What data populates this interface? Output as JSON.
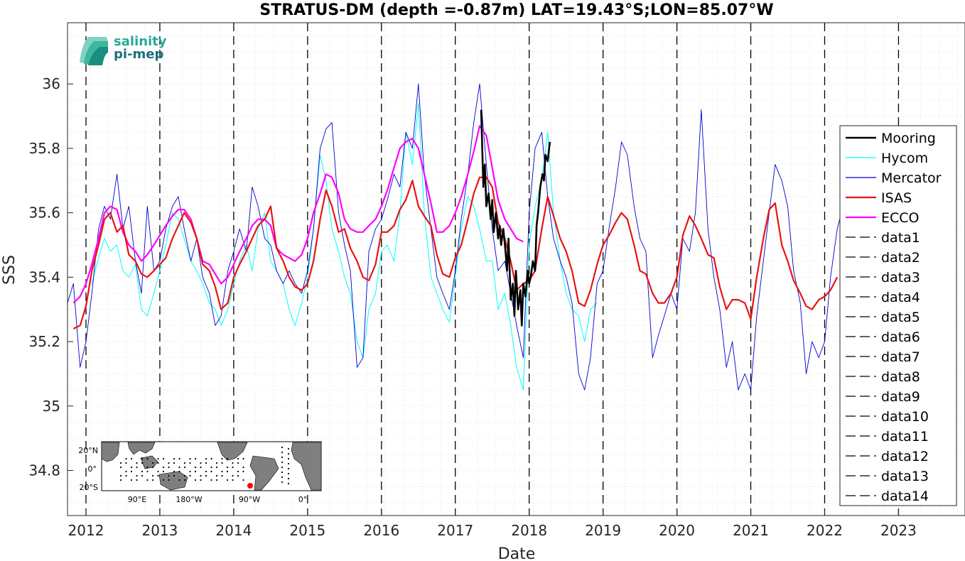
{
  "logo": {
    "line1": "salinity",
    "line2": "pi-mep"
  },
  "inset_map": {
    "lat_ticks": [
      "20°N",
      "0°",
      "20°S"
    ],
    "lon_ticks": [
      "90°E",
      "180°W",
      "90°W",
      "0°"
    ],
    "land_color": "#7f7f7f",
    "station_color": "#ff0000"
  },
  "colors": {
    "Mooring": "#000000",
    "Hycom": "#00ffff",
    "Mercator": "#0000cd",
    "ISAS": "#e61414",
    "ECCO": "#ff00ff",
    "dashed": "#000000"
  },
  "chart_data": {
    "type": "line",
    "title": "STRATUS-DM (depth =-0.87m) LAT=19.43°S;LON=85.07°W",
    "xlabel": "Date",
    "ylabel": "SSS",
    "xlim": [
      2011.75,
      2023.9
    ],
    "ylim": [
      34.66,
      36.19
    ],
    "x_ticks": [
      2012,
      2013,
      2014,
      2015,
      2016,
      2017,
      2018,
      2019,
      2020,
      2021,
      2022,
      2023
    ],
    "y_ticks": [
      34.8,
      35,
      35.2,
      35.4,
      35.6,
      35.8,
      36
    ],
    "y_tick_labels": [
      "34.8",
      "35",
      "35.2",
      "35.4",
      "35.6",
      "35.8",
      "36"
    ],
    "grid": true,
    "legend_position": "right",
    "legend": [
      "Mooring",
      "Hycom",
      "Mercator",
      "ISAS",
      "ECCO",
      "data1",
      "data2",
      "data3",
      "data4",
      "data5",
      "data6",
      "data7",
      "data8",
      "data9",
      "data10",
      "data11",
      "data12",
      "data13",
      "data14"
    ],
    "vertical_dashed_lines_x": [
      2012,
      2013,
      2014,
      2015,
      2016,
      2017,
      2018,
      2019,
      2020,
      2021,
      2022,
      2023,
      2011.75,
      2023.9
    ],
    "series": [
      {
        "name": "ISAS",
        "x": [
          2011.83,
          2011.92,
          2012.0,
          2012.08,
          2012.17,
          2012.25,
          2012.33,
          2012.42,
          2012.5,
          2012.58,
          2012.67,
          2012.75,
          2012.83,
          2012.92,
          2013.0,
          2013.08,
          2013.17,
          2013.25,
          2013.33,
          2013.42,
          2013.5,
          2013.58,
          2013.67,
          2013.75,
          2013.83,
          2013.92,
          2014.0,
          2014.08,
          2014.17,
          2014.25,
          2014.33,
          2014.42,
          2014.5,
          2014.58,
          2014.67,
          2014.75,
          2014.83,
          2014.92,
          2015.0,
          2015.08,
          2015.17,
          2015.25,
          2015.33,
          2015.42,
          2015.5,
          2015.58,
          2015.67,
          2015.75,
          2015.83,
          2015.92,
          2016.0,
          2016.08,
          2016.17,
          2016.25,
          2016.33,
          2016.42,
          2016.5,
          2016.58,
          2016.67,
          2016.75,
          2016.83,
          2016.92,
          2017.0,
          2017.08,
          2017.17,
          2017.25,
          2017.33,
          2017.42,
          2017.5,
          2017.58,
          2017.67,
          2017.75,
          2017.83,
          2017.92,
          2018.0,
          2018.08,
          2018.17,
          2018.25,
          2018.33,
          2018.42,
          2018.5,
          2018.58,
          2018.67,
          2018.75,
          2018.83,
          2018.92,
          2019.0,
          2019.08,
          2019.17,
          2019.25,
          2019.33,
          2019.42,
          2019.5,
          2019.58,
          2019.67,
          2019.75,
          2019.83,
          2019.92,
          2020.0,
          2020.08,
          2020.17,
          2020.25,
          2020.33,
          2020.42,
          2020.5,
          2020.58,
          2020.67,
          2020.75,
          2020.83,
          2020.92,
          2021.0,
          2021.08,
          2021.17,
          2021.25,
          2021.33,
          2021.42,
          2021.5,
          2021.58,
          2021.67,
          2021.75,
          2021.83,
          2021.92,
          2022.0,
          2022.08,
          2022.17
        ],
        "values": [
          35.24,
          35.25,
          35.31,
          35.42,
          35.5,
          35.58,
          35.6,
          35.54,
          35.56,
          35.47,
          35.45,
          35.41,
          35.4,
          35.42,
          35.44,
          35.46,
          35.52,
          35.56,
          35.6,
          35.57,
          35.52,
          35.44,
          35.42,
          35.37,
          35.3,
          35.32,
          35.4,
          35.44,
          35.48,
          35.52,
          35.56,
          35.58,
          35.62,
          35.49,
          35.45,
          35.4,
          35.37,
          35.36,
          35.38,
          35.45,
          35.58,
          35.67,
          35.62,
          35.54,
          35.55,
          35.49,
          35.45,
          35.4,
          35.39,
          35.44,
          35.54,
          35.54,
          35.56,
          35.61,
          35.64,
          35.7,
          35.62,
          35.59,
          35.56,
          35.47,
          35.41,
          35.4,
          35.46,
          35.5,
          35.58,
          35.66,
          35.71,
          35.71,
          35.68,
          35.57,
          35.52,
          35.45,
          35.36,
          35.38,
          35.39,
          35.42,
          35.55,
          35.65,
          35.59,
          35.52,
          35.48,
          35.42,
          35.32,
          35.31,
          35.36,
          35.44,
          35.5,
          35.53,
          35.57,
          35.6,
          35.58,
          35.5,
          35.42,
          35.41,
          35.35,
          35.32,
          35.32,
          35.35,
          35.4,
          35.53,
          35.59,
          35.56,
          35.52,
          35.47,
          35.46,
          35.37,
          35.3,
          35.33,
          35.33,
          35.32,
          35.27,
          35.4,
          35.52,
          35.61,
          35.63,
          35.5,
          35.45,
          35.39,
          35.35,
          35.31,
          35.3,
          35.33,
          35.34,
          35.36,
          35.4
        ]
      },
      {
        "name": "ECCO",
        "x": [
          2011.83,
          2011.92,
          2012.0,
          2012.08,
          2012.17,
          2012.25,
          2012.33,
          2012.42,
          2012.5,
          2012.58,
          2012.67,
          2012.75,
          2012.83,
          2012.92,
          2013.0,
          2013.08,
          2013.17,
          2013.25,
          2013.33,
          2013.42,
          2013.5,
          2013.58,
          2013.67,
          2013.75,
          2013.83,
          2013.92,
          2014.0,
          2014.08,
          2014.17,
          2014.25,
          2014.33,
          2014.42,
          2014.5,
          2014.58,
          2014.67,
          2014.75,
          2014.83,
          2014.92,
          2015.0,
          2015.08,
          2015.17,
          2015.25,
          2015.33,
          2015.42,
          2015.5,
          2015.58,
          2015.67,
          2015.75,
          2015.83,
          2015.92,
          2016.0,
          2016.08,
          2016.17,
          2016.25,
          2016.33,
          2016.42,
          2016.5,
          2016.58,
          2016.67,
          2016.75,
          2016.83,
          2016.92,
          2017.0,
          2017.08,
          2017.17,
          2017.25,
          2017.33,
          2017.42,
          2017.5,
          2017.58,
          2017.67,
          2017.75,
          2017.83,
          2017.92
        ],
        "values": [
          35.32,
          35.34,
          35.38,
          35.44,
          35.52,
          35.6,
          35.62,
          35.61,
          35.54,
          35.5,
          35.48,
          35.45,
          35.47,
          35.5,
          35.53,
          35.56,
          35.59,
          35.61,
          35.61,
          35.58,
          35.52,
          35.45,
          35.44,
          35.41,
          35.38,
          35.4,
          35.44,
          35.48,
          35.52,
          35.56,
          35.58,
          35.58,
          35.56,
          35.49,
          35.47,
          35.46,
          35.45,
          35.47,
          35.52,
          35.6,
          35.66,
          35.72,
          35.71,
          35.66,
          35.58,
          35.55,
          35.54,
          35.54,
          35.56,
          35.58,
          35.62,
          35.67,
          35.74,
          35.8,
          35.82,
          35.83,
          35.8,
          35.72,
          35.63,
          35.54,
          35.54,
          35.56,
          35.6,
          35.65,
          35.72,
          35.79,
          35.87,
          35.84,
          35.74,
          35.64,
          35.58,
          35.55,
          35.52,
          35.51
        ]
      },
      {
        "name": "Mooring",
        "x": [
          2017.35,
          2017.38,
          2017.4,
          2017.42,
          2017.45,
          2017.48,
          2017.5,
          2017.52,
          2017.55,
          2017.58,
          2017.6,
          2017.62,
          2017.65,
          2017.68,
          2017.7,
          2017.72,
          2017.75,
          2017.78,
          2017.8,
          2017.82,
          2017.85,
          2017.88,
          2017.9,
          2017.92,
          2017.95,
          2017.98,
          2018.0,
          2018.02,
          2018.05,
          2018.08,
          2018.1,
          2018.12,
          2018.15,
          2018.18,
          2018.2,
          2018.22,
          2018.25,
          2018.28
        ],
        "values": [
          35.92,
          35.68,
          35.75,
          35.62,
          35.66,
          35.58,
          35.64,
          35.54,
          35.6,
          35.52,
          35.56,
          35.5,
          35.55,
          35.48,
          35.42,
          35.52,
          35.33,
          35.38,
          35.28,
          35.42,
          35.3,
          35.36,
          35.25,
          35.38,
          35.34,
          35.42,
          35.38,
          35.4,
          35.45,
          35.42,
          35.56,
          35.6,
          35.68,
          35.72,
          35.7,
          35.78,
          35.76,
          35.82
        ]
      },
      {
        "name": "Hycom",
        "x": [
          2012.08,
          2012.17,
          2012.25,
          2012.33,
          2012.42,
          2012.5,
          2012.58,
          2012.67,
          2012.75,
          2012.83,
          2012.92,
          2013.0,
          2013.08,
          2013.17,
          2013.25,
          2013.33,
          2013.42,
          2013.5,
          2013.58,
          2013.67,
          2013.75,
          2013.83,
          2013.92,
          2014.0,
          2014.08,
          2014.17,
          2014.25,
          2014.33,
          2014.42,
          2014.5,
          2014.58,
          2014.67,
          2014.75,
          2014.83,
          2014.92,
          2015.0,
          2015.08,
          2015.17,
          2015.25,
          2015.33,
          2015.42,
          2015.5,
          2015.58,
          2015.67,
          2015.75,
          2015.83,
          2015.92,
          2016.0,
          2016.08,
          2016.17,
          2016.25,
          2016.33,
          2016.42,
          2016.5,
          2016.58,
          2016.67,
          2016.75,
          2016.83,
          2016.92,
          2017.0,
          2017.08,
          2017.17,
          2017.25,
          2017.33,
          2017.42,
          2017.5,
          2017.58,
          2017.67,
          2017.75,
          2017.83,
          2017.92,
          2018.0,
          2018.08,
          2018.17,
          2018.25,
          2018.33,
          2018.42,
          2018.5,
          2018.58,
          2018.67,
          2018.75,
          2018.83,
          2018.92
        ],
        "values": [
          35.38,
          35.46,
          35.52,
          35.48,
          35.5,
          35.42,
          35.4,
          35.44,
          35.3,
          35.28,
          35.35,
          35.42,
          35.5,
          35.6,
          35.58,
          35.52,
          35.45,
          35.42,
          35.38,
          35.32,
          35.3,
          35.25,
          35.3,
          35.38,
          35.45,
          35.5,
          35.42,
          35.55,
          35.6,
          35.45,
          35.42,
          35.38,
          35.3,
          35.25,
          35.32,
          35.4,
          35.55,
          35.78,
          35.7,
          35.55,
          35.48,
          35.4,
          35.35,
          35.2,
          35.15,
          35.3,
          35.35,
          35.48,
          35.5,
          35.45,
          35.6,
          35.85,
          35.75,
          35.94,
          35.6,
          35.4,
          35.35,
          35.3,
          35.26,
          35.4,
          35.55,
          35.65,
          35.62,
          35.55,
          35.45,
          35.45,
          35.3,
          35.35,
          35.25,
          35.12,
          35.05,
          35.5,
          35.62,
          35.7,
          35.85,
          35.6,
          35.45,
          35.35,
          35.3,
          35.28,
          35.2,
          35.3,
          35.32
        ]
      },
      {
        "name": "Mercator",
        "x": [
          2011.75,
          2011.83,
          2011.92,
          2012.0,
          2012.08,
          2012.17,
          2012.25,
          2012.33,
          2012.42,
          2012.5,
          2012.58,
          2012.67,
          2012.75,
          2012.83,
          2012.92,
          2013.0,
          2013.08,
          2013.17,
          2013.25,
          2013.33,
          2013.42,
          2013.5,
          2013.58,
          2013.67,
          2013.75,
          2013.83,
          2013.92,
          2014.0,
          2014.08,
          2014.17,
          2014.25,
          2014.33,
          2014.42,
          2014.5,
          2014.58,
          2014.67,
          2014.75,
          2014.83,
          2014.92,
          2015.0,
          2015.08,
          2015.17,
          2015.25,
          2015.33,
          2015.42,
          2015.5,
          2015.58,
          2015.67,
          2015.75,
          2015.83,
          2015.92,
          2016.0,
          2016.08,
          2016.17,
          2016.25,
          2016.33,
          2016.42,
          2016.5,
          2016.58,
          2016.67,
          2016.75,
          2016.83,
          2016.92,
          2017.0,
          2017.08,
          2017.17,
          2017.25,
          2017.33,
          2017.42,
          2017.5,
          2017.58,
          2017.67,
          2017.75,
          2017.83,
          2017.92,
          2018.0,
          2018.08,
          2018.17,
          2018.25,
          2018.33,
          2018.42,
          2018.5,
          2018.58,
          2018.67,
          2018.75,
          2018.83,
          2018.92,
          2019.0,
          2019.08,
          2019.17,
          2019.25,
          2019.33,
          2019.42,
          2019.5,
          2019.58,
          2019.67,
          2019.75,
          2019.83,
          2019.92,
          2020.0,
          2020.08,
          2020.17,
          2020.25,
          2020.33,
          2020.42,
          2020.5,
          2020.58,
          2020.67,
          2020.75,
          2020.83,
          2020.92,
          2021.0,
          2021.08,
          2021.17,
          2021.25,
          2021.33,
          2021.42,
          2021.5,
          2021.58,
          2021.67,
          2021.75,
          2021.83,
          2021.92,
          2022.0,
          2022.08,
          2022.17,
          2022.25
        ],
        "values": [
          35.32,
          35.38,
          35.12,
          35.2,
          35.35,
          35.55,
          35.62,
          35.58,
          35.72,
          35.55,
          35.62,
          35.45,
          35.35,
          35.62,
          35.42,
          35.45,
          35.55,
          35.62,
          35.65,
          35.55,
          35.45,
          35.52,
          35.4,
          35.35,
          35.25,
          35.28,
          35.42,
          35.48,
          35.55,
          35.48,
          35.68,
          35.62,
          35.52,
          35.5,
          35.42,
          35.38,
          35.42,
          35.38,
          35.35,
          35.42,
          35.55,
          35.8,
          35.86,
          35.88,
          35.6,
          35.5,
          35.42,
          35.12,
          35.15,
          35.48,
          35.55,
          35.58,
          35.64,
          35.72,
          35.68,
          35.85,
          35.8,
          36.0,
          35.72,
          35.55,
          35.4,
          35.35,
          35.3,
          35.42,
          35.58,
          35.72,
          35.88,
          36.0,
          35.75,
          35.55,
          35.42,
          35.45,
          35.35,
          35.25,
          35.15,
          35.6,
          35.8,
          35.85,
          35.65,
          35.52,
          35.45,
          35.4,
          35.32,
          35.1,
          35.05,
          35.15,
          35.38,
          35.42,
          35.55,
          35.68,
          35.82,
          35.78,
          35.62,
          35.52,
          35.48,
          35.15,
          35.22,
          35.28,
          35.35,
          35.3,
          35.52,
          35.48,
          35.6,
          35.92,
          35.55,
          35.4,
          35.3,
          35.12,
          35.2,
          35.05,
          35.1,
          35.05,
          35.28,
          35.45,
          35.6,
          35.75,
          35.7,
          35.62,
          35.42,
          35.32,
          35.1,
          35.2,
          35.15,
          35.2,
          35.4,
          35.55,
          35.62
        ]
      }
    ]
  }
}
